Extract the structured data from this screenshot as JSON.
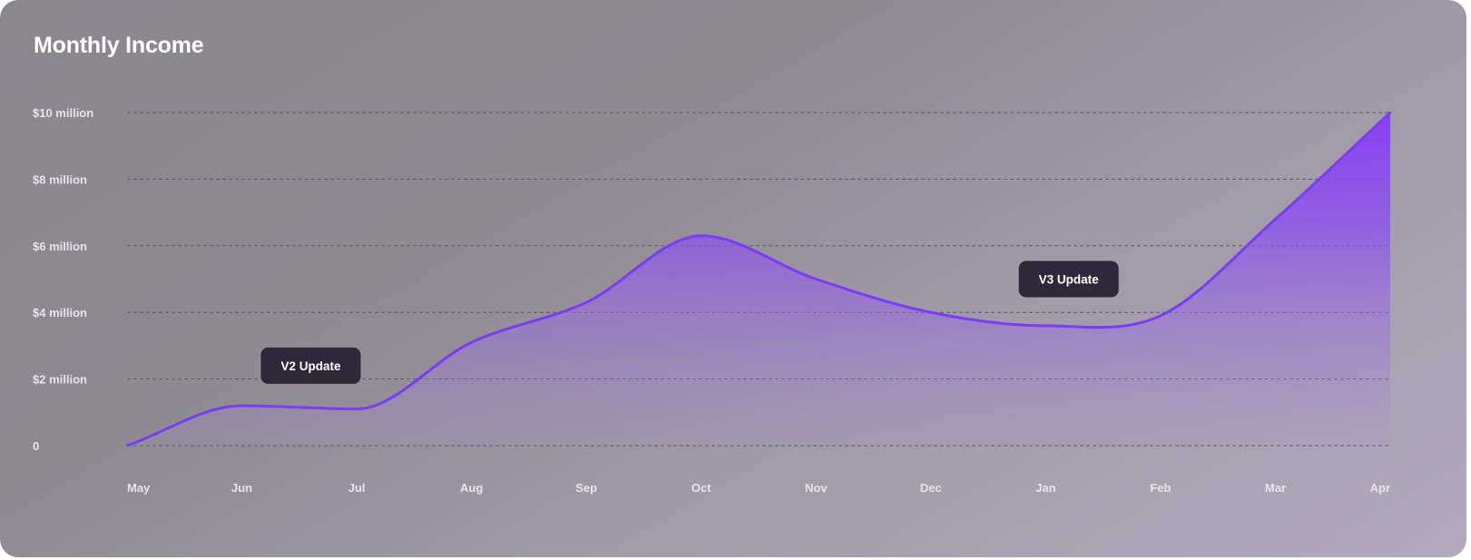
{
  "chart_data": {
    "type": "area",
    "title": "Monthly Income",
    "categories": [
      "May",
      "Jun",
      "Jul",
      "Aug",
      "Sep",
      "Oct",
      "Nov",
      "Dec",
      "Jan",
      "Feb",
      "Mar",
      "Apr"
    ],
    "y_ticks": [
      {
        "value": 0,
        "label": "0"
      },
      {
        "value": 2,
        "label": "$2 million"
      },
      {
        "value": 4,
        "label": "$4 million"
      },
      {
        "value": 6,
        "label": "$6 million"
      },
      {
        "value": 8,
        "label": "$8 million"
      },
      {
        "value": 10,
        "label": "$10 million"
      }
    ],
    "ylim": [
      0,
      10
    ],
    "y_unit": "$ million",
    "grid": true,
    "series": [
      {
        "values": [
          0,
          1.2,
          1.1,
          3.1,
          4.3,
          6.3,
          5.0,
          4.0,
          3.6,
          3.9,
          6.8,
          10.0
        ]
      }
    ],
    "annotations": [
      {
        "label": "V2 Update",
        "x": 1.6,
        "y": 2.4
      },
      {
        "label": "V3 Update",
        "x": 8.2,
        "y": 5.0
      }
    ],
    "colors": {
      "line": "#7b3df0",
      "fill_top": "#8b3df5",
      "annotation_bg": "#2e2838"
    }
  }
}
